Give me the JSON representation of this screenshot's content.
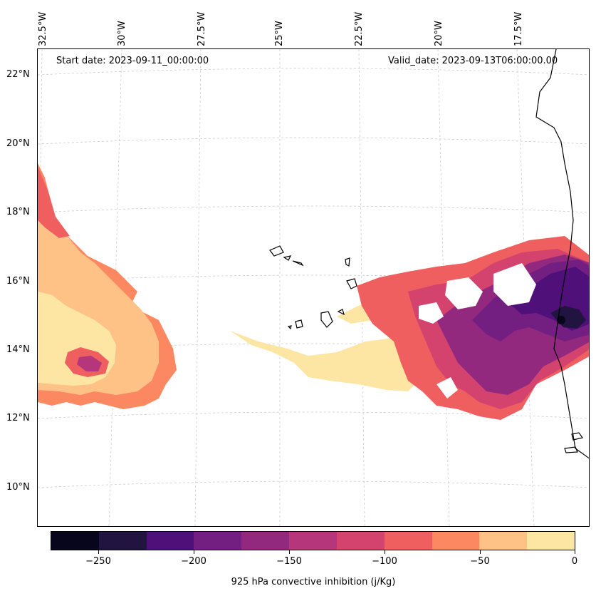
{
  "header": {
    "start_date": "Start date: 2023-09-11_00:00:00",
    "valid_date": "Valid_date: 2023-09-13T06:00:00.00"
  },
  "longitude_labels": [
    "32.5°W",
    "30°W",
    "27.5°W",
    "25°W",
    "22.5°W",
    "20°W",
    "17.5°W"
  ],
  "latitude_labels": [
    "22°N",
    "20°N",
    "18°N",
    "16°N",
    "14°N",
    "12°N",
    "10°N"
  ],
  "colorbar": {
    "title": "925 hPa convective inhibition (j/Kg)",
    "tick_labels": [
      "−250",
      "−200",
      "−150",
      "−100",
      "−50",
      "0"
    ],
    "levels": [
      -275,
      -250,
      -225,
      -200,
      -175,
      -150,
      -125,
      -100,
      -75,
      -50,
      -25,
      0
    ],
    "colors": [
      "#07061c",
      "#211440",
      "#4f107a",
      "#721f81",
      "#93297e",
      "#b5367a",
      "#d4436e",
      "#ef5f5f",
      "#fb8861",
      "#fec287",
      "#fde6a4"
    ]
  },
  "map_style": {
    "gridlines": true,
    "gridline_color": "#cccccc",
    "coastline_color": "#000000",
    "colormap": "magma"
  }
}
